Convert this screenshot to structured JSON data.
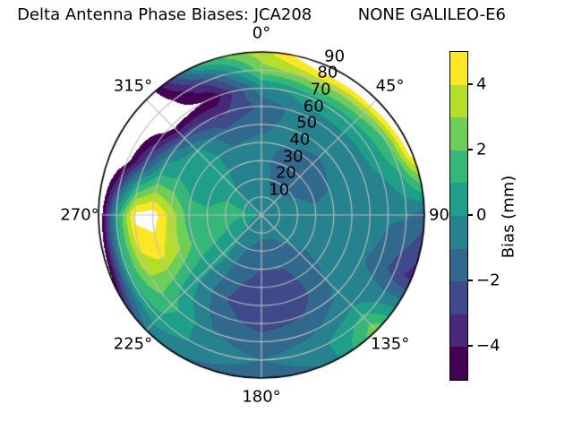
{
  "title": "Delta Antenna Phase Biases: JCA208         NONE GALILEO-E6",
  "station": "JCA208",
  "signal": "NONE GALILEO-E6",
  "chart_data": {
    "type": "polar_contour",
    "title": "Delta Antenna Phase Biases: JCA208         NONE GALILEO-E6",
    "orientation": "azimuth clockwise from North (0° top)",
    "levels": [
      -5,
      -4,
      -3,
      -2,
      -1,
      0,
      1,
      2,
      3,
      4,
      5
    ],
    "band_colors": [
      "#440154",
      "#482878",
      "#3e4a89",
      "#31688e",
      "#26828e",
      "#1f9e89",
      "#35b779",
      "#6ece58",
      "#b5de2b",
      "#fde725"
    ],
    "out_of_range_color": "#ffffff",
    "grid_line_color": "#bdbdbd",
    "spine_color": "#000000",
    "azimuth_ticks_deg": [
      0,
      45,
      90,
      135,
      180,
      225,
      270,
      315
    ],
    "azimuth_tick_labels": [
      "0°",
      "45°",
      "90°",
      "135°",
      "180°",
      "225°",
      "270°",
      "315°"
    ],
    "radial_ticks": [
      10,
      20,
      30,
      40,
      50,
      60,
      70,
      80,
      90
    ],
    "radial_tick_labels": [
      "10",
      "20",
      "30",
      "40",
      "50",
      "60",
      "70",
      "80",
      "90"
    ],
    "colorbar": {
      "label": "Bias (mm)",
      "vmin": -5,
      "vmax": 5,
      "tick_values": [
        4,
        2,
        0,
        -2,
        -4
      ],
      "tick_labels": [
        "4",
        "2",
        "0",
        "−2",
        "−4"
      ]
    },
    "grid": {
      "azimuth_deg": [
        0,
        22.5,
        45,
        67.5,
        90,
        112.5,
        135,
        157.5,
        180,
        202.5,
        225,
        247.5,
        270,
        292.5,
        315,
        337.5,
        360
      ],
      "radius": [
        0,
        10,
        20,
        30,
        40,
        50,
        60,
        70,
        80,
        90
      ],
      "bias_mm": [
        [
          -0.3,
          -0.3,
          -0.5,
          -0.6,
          -0.8,
          -1.2,
          -1.8,
          -0.3,
          2.6,
          3.6
        ],
        [
          -0.3,
          -0.8,
          -1.4,
          -1.5,
          -1.0,
          -0.7,
          -0.4,
          0.6,
          3.4,
          6.5
        ],
        [
          -0.3,
          -0.7,
          -1.3,
          -1.6,
          -1.2,
          -0.8,
          -0.3,
          0.4,
          2.8,
          7.0
        ],
        [
          -0.3,
          -0.5,
          -0.9,
          -1.2,
          -1.0,
          -0.6,
          -0.3,
          0.2,
          1.6,
          5.8
        ],
        [
          -0.3,
          -0.4,
          -0.6,
          -0.8,
          -0.7,
          -0.5,
          -0.6,
          -0.9,
          -0.8,
          -1.6
        ],
        [
          -0.3,
          -0.5,
          -0.7,
          -0.9,
          -0.8,
          -0.7,
          -0.9,
          -1.3,
          -2.6,
          -3.4
        ],
        [
          -0.3,
          -0.6,
          -0.9,
          -1.05,
          -1.05,
          -1.0,
          -0.8,
          -0.2,
          1.4,
          2.8
        ],
        [
          -0.3,
          -0.8,
          -1.3,
          -1.9,
          -2.4,
          -2.6,
          -2.0,
          -1.2,
          -0.4,
          -1.0
        ],
        [
          -0.3,
          -0.8,
          -1.4,
          -2.0,
          -2.5,
          -2.7,
          -2.4,
          -1.6,
          -1.0,
          -1.6
        ],
        [
          -0.3,
          -0.6,
          -1.0,
          -1.4,
          -1.8,
          -2.0,
          -1.6,
          -0.9,
          -0.4,
          -1.2
        ],
        [
          -0.3,
          -0.2,
          0.2,
          0.4,
          0.3,
          0.2,
          0.6,
          1.4,
          0.8,
          -0.8
        ],
        [
          -0.3,
          0.4,
          1.0,
          1.4,
          1.8,
          3.2,
          4.2,
          3.6,
          0.8,
          -5.3
        ],
        [
          -0.3,
          1.2,
          1.6,
          1.2,
          1.5,
          3.6,
          5.6,
          5.3,
          0.5,
          -6.5
        ],
        [
          -0.3,
          0.8,
          1.0,
          0.6,
          0.6,
          1.1,
          0.8,
          -2.0,
          -5.6,
          -7.0
        ],
        [
          -0.3,
          -0.2,
          0.0,
          0.3,
          0.6,
          0.2,
          -2.2,
          -5.8,
          -6.2,
          -6.5
        ],
        [
          -0.3,
          -0.4,
          -0.5,
          -0.5,
          -0.9,
          -1.8,
          -3.2,
          -4.8,
          -2.5,
          1.5
        ],
        [
          -0.3,
          -0.3,
          -0.5,
          -0.6,
          -0.8,
          -1.2,
          -1.8,
          -0.3,
          2.6,
          3.6
        ]
      ]
    }
  }
}
